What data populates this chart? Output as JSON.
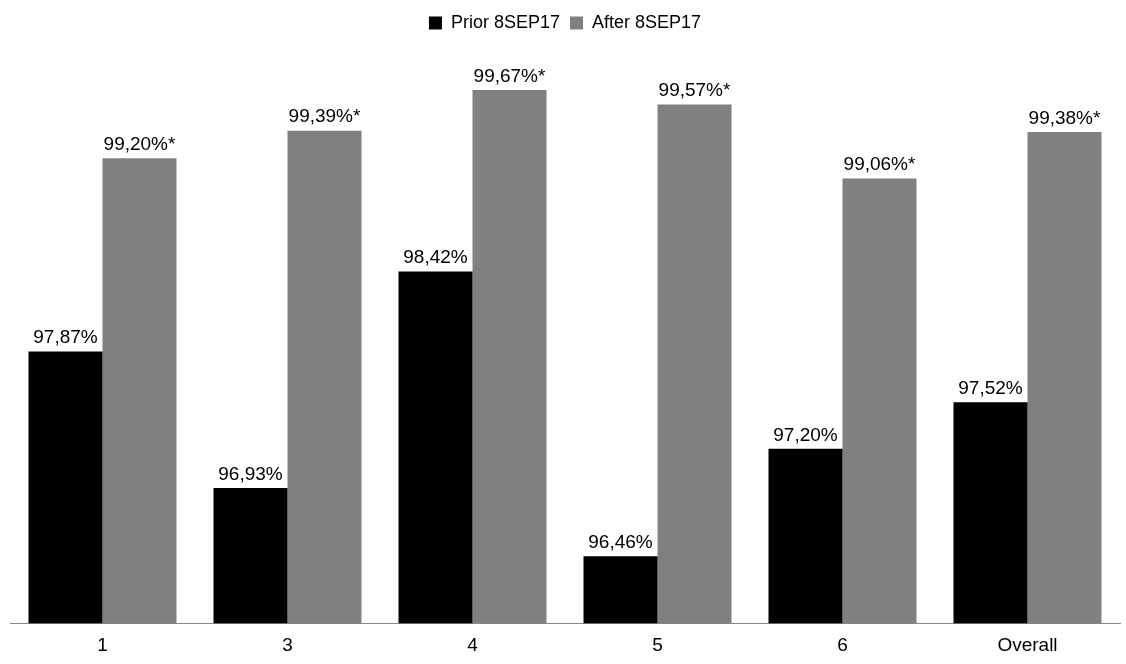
{
  "chart_data": {
    "type": "bar",
    "categories": [
      "1",
      "3",
      "4",
      "5",
      "6",
      "Overall"
    ],
    "series": [
      {
        "name": "Prior 8SEP17",
        "color": "#000000",
        "values": [
          97.87,
          96.93,
          98.42,
          96.46,
          97.2,
          97.52
        ],
        "value_labels": [
          "97,87%",
          "96,93%",
          "98,42%",
          "96,46%",
          "97,20%",
          "97,52%"
        ]
      },
      {
        "name": "After 8SEP17",
        "color": "#808080",
        "values": [
          99.2,
          99.39,
          99.67,
          99.57,
          99.06,
          99.38
        ],
        "value_labels": [
          "99,20%*",
          "99,39%*",
          "99,67%*",
          "99,57%*",
          "99,06%*",
          "99,38%*"
        ]
      }
    ],
    "tick_labels": "x",
    "grid": false,
    "legend": "top"
  }
}
